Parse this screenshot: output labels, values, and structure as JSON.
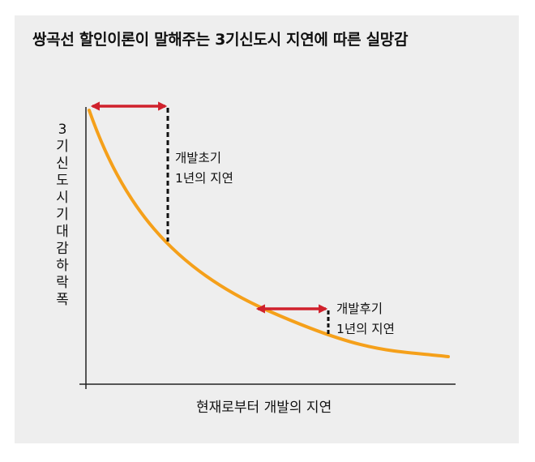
{
  "title": "쌍곡선 할인이론이 말해주는 3기신도시 지연에 따른 실망감",
  "y_axis_label": "3기신도시 기대감 하락폭",
  "x_axis_label": "현재로부터 개발의 지연",
  "annotations": [
    {
      "line1": "개발초기",
      "line2": "1년의 지연"
    },
    {
      "line1": "개발후기",
      "line2": "1년의 지연"
    }
  ],
  "colors": {
    "background": "#eeeeee",
    "curve": "#f5a01a",
    "arrow": "#d0212c",
    "dashed_line": "#111111",
    "axis": "#222222"
  }
}
